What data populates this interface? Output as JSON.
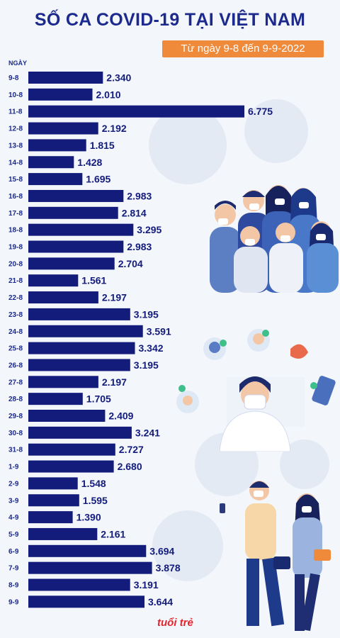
{
  "header": {
    "title": "SỐ CA COVID-19 TẠI VIỆT NAM",
    "subtitle": "Từ ngày 9-8 đến 9-9-2022"
  },
  "logo_text": "tuổi trẻ",
  "colors": {
    "bar": "#131c7a",
    "title": "#1b2a8c",
    "accent": "#ef8a3b",
    "background": "#f3f6fb"
  },
  "chart_data": {
    "type": "bar",
    "orientation": "horizontal",
    "ylabel": "NGÀY",
    "categories": [
      "9-8",
      "10-8",
      "11-8",
      "12-8",
      "13-8",
      "14-8",
      "15-8",
      "16-8",
      "17-8",
      "18-8",
      "19-8",
      "20-8",
      "21-8",
      "22-8",
      "23-8",
      "24-8",
      "25-8",
      "26-8",
      "27-8",
      "28-8",
      "29-8",
      "30-8",
      "31-8",
      "1-9",
      "2-9",
      "3-9",
      "4-9",
      "5-9",
      "6-9",
      "7-9",
      "8-9",
      "9-9"
    ],
    "values": [
      2340,
      2010,
      6775,
      2192,
      1815,
      1428,
      1695,
      2983,
      2814,
      3295,
      2983,
      2704,
      1561,
      2197,
      3195,
      3591,
      3342,
      3195,
      2197,
      1705,
      2409,
      3241,
      2727,
      2680,
      1548,
      1595,
      1390,
      2161,
      3694,
      3878,
      3191,
      3644
    ],
    "value_labels": [
      "2.340",
      "2.010",
      "6.775",
      "2.192",
      "1.815",
      "1.428",
      "1.695",
      "2.983",
      "2.814",
      "3.295",
      "2.983",
      "2.704",
      "1.561",
      "2.197",
      "3.195",
      "3.591",
      "3.342",
      "3.195",
      "2.197",
      "1.705",
      "2.409",
      "3.241",
      "2.727",
      "2.680",
      "1.548",
      "1.595",
      "1.390",
      "2.161",
      "3.694",
      "3.878",
      "3.191",
      "3.644"
    ],
    "grid": false,
    "legend": "none"
  }
}
